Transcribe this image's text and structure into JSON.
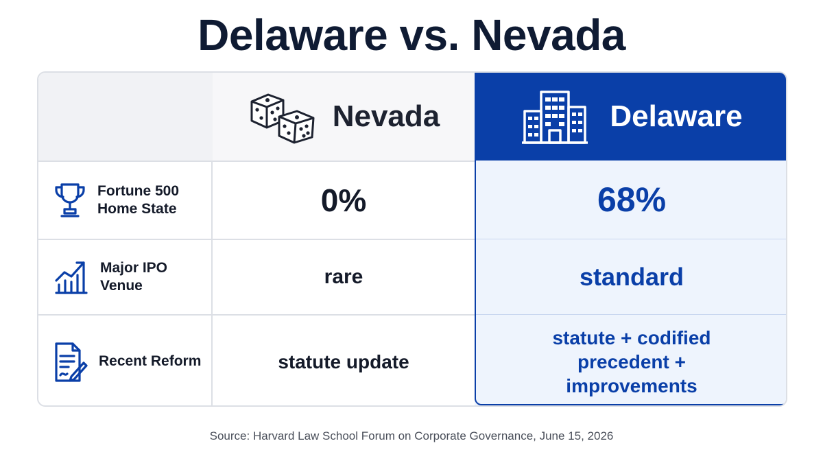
{
  "title": "Delaware vs. Nevada",
  "header": {
    "nevada_label": "Nevada",
    "nevada_icon": "dice-icon",
    "delaware_label": "Delaware",
    "delaware_icon": "office-buildings-icon"
  },
  "rows": [
    {
      "label": "Fortune 500 Home State",
      "icon": "trophy-icon",
      "nevada": "0%",
      "delaware": "68%"
    },
    {
      "label": "Major IPO Venue",
      "icon": "growth-chart-icon",
      "nevada": "rare",
      "delaware": "standard"
    },
    {
      "label": "Recent Reform",
      "icon": "document-pen-icon",
      "nevada": "statute update",
      "delaware": "statute + codified precedent + improvements"
    }
  ],
  "source": "Source: Harvard Law School Forum on Corporate Governance, June 15, 2026",
  "colors": {
    "accent": "#0a3fa8",
    "accent_light": "#eef4fd",
    "title": "#0f1b33"
  }
}
